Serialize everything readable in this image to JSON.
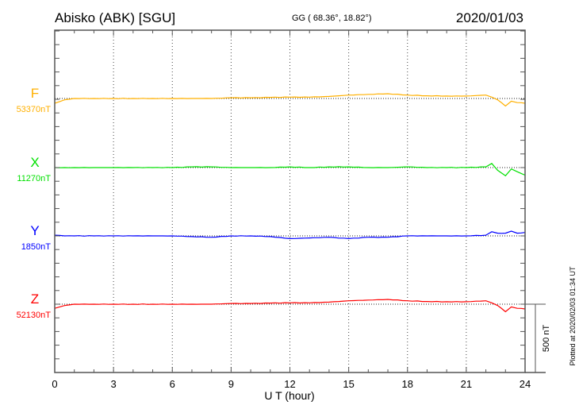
{
  "header": {
    "station": "Abisko (ABK)  [SGU]",
    "coords": "GG ( 68.36°,  18.82°)",
    "date": "2020/01/03"
  },
  "footer": {
    "plotted": "Plotted at 2020/02/03 01:34 UT"
  },
  "chart_data": {
    "type": "line",
    "title": "Abisko (ABK)  [SGU]",
    "xlabel": "U T (hour)",
    "xlim": [
      0,
      24
    ],
    "xticks": [
      "0",
      "3",
      "6",
      "9",
      "12",
      "15",
      "18",
      "21",
      "24"
    ],
    "grid": "dotted vertical every 3 hours",
    "scale_bar": "500 nT",
    "x": [
      0,
      0.5,
      1,
      2,
      3,
      4,
      5,
      6,
      7,
      8,
      9,
      10,
      11,
      12,
      13,
      14,
      15,
      16,
      17,
      18,
      19,
      20,
      21,
      22,
      22.3,
      22.6,
      23,
      23.3,
      23.6,
      24
    ],
    "series": [
      {
        "name": "F",
        "baseline": "53370nT",
        "color": "#ffb000",
        "values": [
          -35,
          -10,
          0,
          0,
          0,
          0,
          0,
          0,
          0,
          0,
          5,
          5,
          8,
          10,
          10,
          15,
          25,
          30,
          35,
          25,
          20,
          18,
          18,
          25,
          10,
          -10,
          -55,
          -20,
          -30,
          -35
        ]
      },
      {
        "name": "X",
        "baseline": "11270nT",
        "color": "#00e000",
        "values": [
          0,
          0,
          0,
          0,
          0,
          0,
          0,
          0,
          5,
          5,
          0,
          0,
          0,
          5,
          0,
          5,
          5,
          0,
          0,
          5,
          0,
          0,
          0,
          5,
          30,
          -20,
          -60,
          -10,
          -30,
          -55
        ]
      },
      {
        "name": "Y",
        "baseline": "1850nT",
        "color": "#0000ff",
        "values": [
          5,
          0,
          0,
          0,
          0,
          0,
          0,
          0,
          -5,
          -10,
          0,
          0,
          -5,
          -20,
          -15,
          -10,
          -20,
          -10,
          -10,
          0,
          0,
          0,
          0,
          5,
          30,
          20,
          20,
          35,
          20,
          25
        ]
      },
      {
        "name": "Z",
        "baseline": "52130nT",
        "color": "#ff0000",
        "values": [
          -30,
          -10,
          0,
          0,
          0,
          0,
          0,
          0,
          0,
          0,
          5,
          5,
          8,
          10,
          10,
          15,
          25,
          30,
          35,
          25,
          20,
          18,
          18,
          25,
          10,
          -10,
          -55,
          -20,
          -30,
          -35
        ]
      }
    ]
  }
}
